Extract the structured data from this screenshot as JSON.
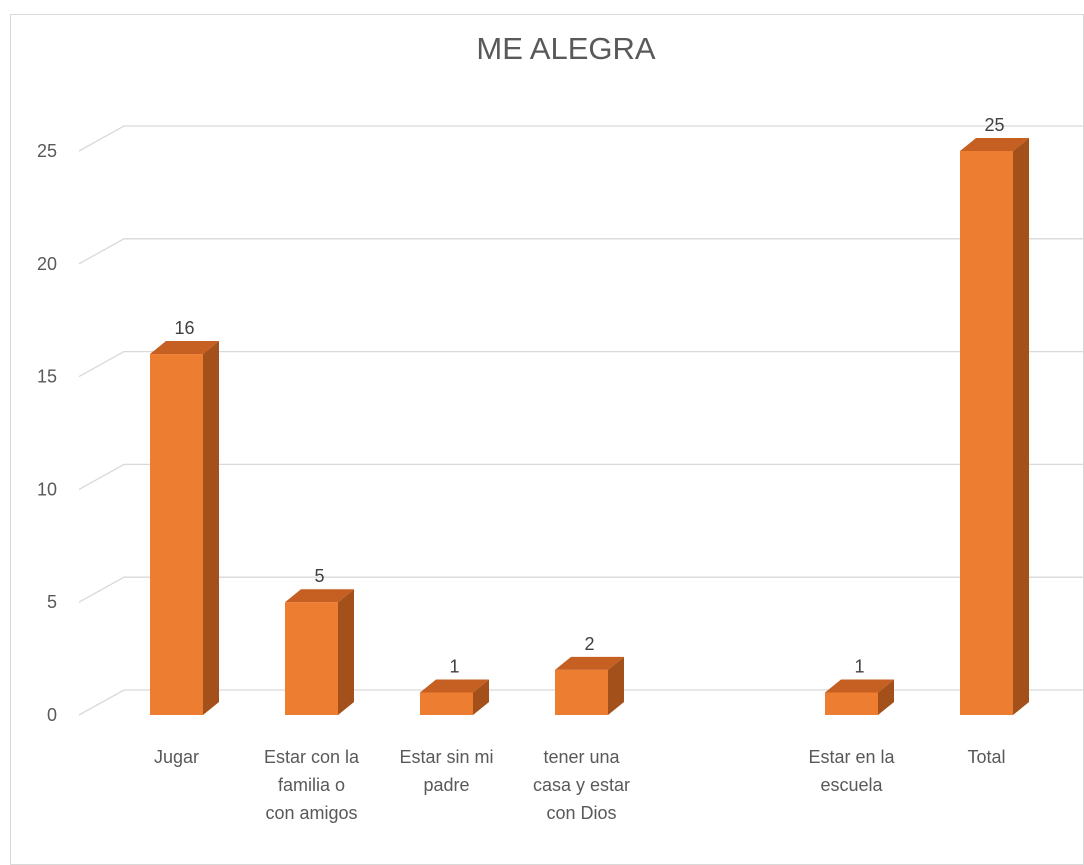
{
  "chart_data": {
    "type": "bar",
    "title": "ME ALEGRA",
    "categories": [
      [
        "Jugar"
      ],
      [
        "Estar con la",
        "familia o",
        "con amigos"
      ],
      [
        "Estar sin mi",
        "padre"
      ],
      [
        "tener una",
        "casa y estar",
        "con Dios"
      ],
      [
        ""
      ],
      [
        "Estar en la",
        "escuela"
      ],
      [
        "Total"
      ]
    ],
    "values": [
      16,
      5,
      1,
      2,
      null,
      1,
      25
    ],
    "data_labels": [
      "16",
      "5",
      "1",
      "2",
      "",
      "1",
      "25"
    ],
    "ylim": [
      0,
      25
    ],
    "yticks": [
      0,
      5,
      10,
      15,
      20,
      25
    ],
    "ytick_labels": [
      "0",
      "5",
      "10",
      "15",
      "20",
      "25"
    ],
    "grid": true,
    "legend": "none",
    "style": "3d-column",
    "colors": {
      "front": "#ED7D31",
      "side": "#A3501A",
      "top": "#C65F22",
      "grid": "#D9D9D9",
      "text": "#595959"
    }
  }
}
